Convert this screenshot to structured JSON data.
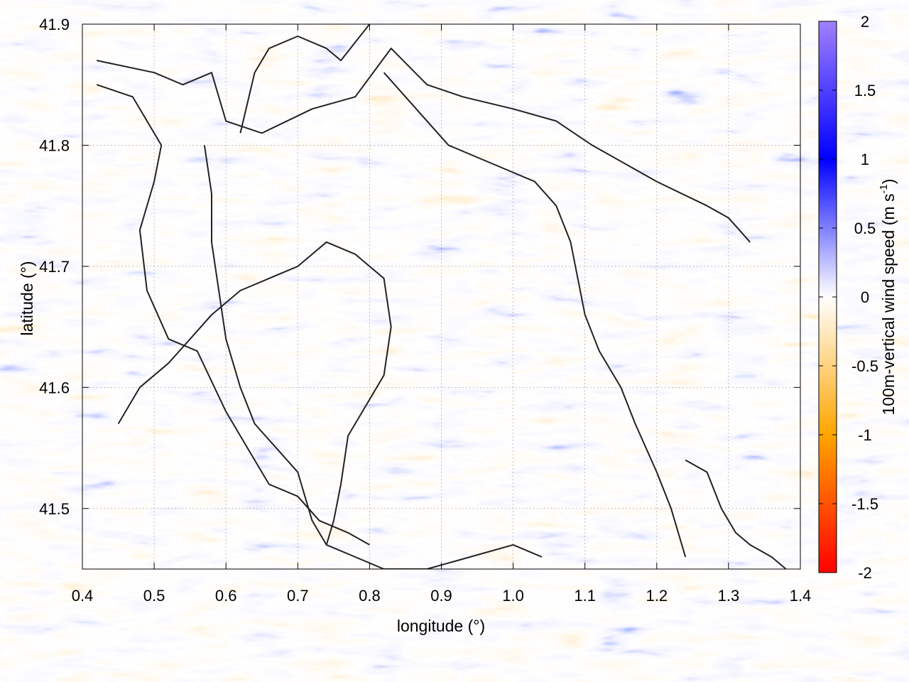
{
  "chart_data": {
    "type": "heatmap",
    "title": "",
    "xlabel": "longitude (°)",
    "ylabel": "latitude (°)",
    "xlim": [
      0.4,
      1.4
    ],
    "ylim": [
      41.45,
      41.9
    ],
    "x_ticks": [
      0.4,
      0.5,
      0.6,
      0.7,
      0.8,
      0.9,
      1.0,
      1.1,
      1.2,
      1.3,
      1.4
    ],
    "x_tick_labels": [
      "0.4",
      "0.5",
      "0.6",
      "0.7",
      "0.8",
      "0.9",
      "1.0",
      "1.1",
      "1.2",
      "1.3",
      "1.4"
    ],
    "y_ticks": [
      41.5,
      41.6,
      41.7,
      41.8,
      41.9
    ],
    "y_tick_labels": [
      "41.5",
      "41.6",
      "41.7",
      "41.8",
      "41.9"
    ],
    "grid": true,
    "colorbar": {
      "label_main": "100m-vertical wind speed (m s",
      "label_sup": "-1",
      "label_end": ")",
      "range": [
        -2,
        2
      ],
      "ticks": [
        2,
        1.5,
        1,
        0.5,
        0,
        -0.5,
        -1,
        -1.5,
        -2
      ],
      "tick_labels": [
        "2",
        "1.5",
        "1",
        "0.5",
        "0",
        "-0.5",
        "-1",
        "-1.5",
        "-2"
      ],
      "colors": [
        {
          "value": -2.0,
          "color": "#ff0000"
        },
        {
          "value": -1.0,
          "color": "#ffa500"
        },
        {
          "value": 0.0,
          "color": "#ffffff"
        },
        {
          "value": 1.0,
          "color": "#0000ff"
        },
        {
          "value": 2.0,
          "color": "#a080ff"
        }
      ]
    },
    "contours": [
      {
        "points": [
          [
            0.42,
            41.87
          ],
          [
            0.5,
            41.86
          ],
          [
            0.54,
            41.85
          ],
          [
            0.58,
            41.86
          ],
          [
            0.6,
            41.82
          ],
          [
            0.65,
            41.81
          ],
          [
            0.72,
            41.83
          ],
          [
            0.78,
            41.84
          ],
          [
            0.83,
            41.88
          ],
          [
            0.88,
            41.85
          ],
          [
            0.93,
            41.84
          ],
          [
            1.0,
            41.83
          ],
          [
            1.06,
            41.82
          ],
          [
            1.11,
            41.8
          ],
          [
            1.2,
            41.77
          ],
          [
            1.27,
            41.75
          ],
          [
            1.3,
            41.74
          ],
          [
            1.33,
            41.72
          ]
        ]
      },
      {
        "points": [
          [
            0.42,
            41.85
          ],
          [
            0.47,
            41.84
          ],
          [
            0.51,
            41.8
          ],
          [
            0.5,
            41.77
          ],
          [
            0.48,
            41.73
          ],
          [
            0.49,
            41.68
          ],
          [
            0.52,
            41.64
          ],
          [
            0.56,
            41.63
          ],
          [
            0.6,
            41.58
          ],
          [
            0.63,
            41.55
          ],
          [
            0.66,
            41.52
          ],
          [
            0.7,
            41.51
          ],
          [
            0.73,
            41.49
          ],
          [
            0.77,
            41.48
          ],
          [
            0.8,
            41.47
          ]
        ]
      },
      {
        "points": [
          [
            0.57,
            41.8
          ],
          [
            0.58,
            41.76
          ],
          [
            0.58,
            41.72
          ],
          [
            0.59,
            41.68
          ],
          [
            0.6,
            41.64
          ],
          [
            0.62,
            41.6
          ],
          [
            0.64,
            41.57
          ],
          [
            0.67,
            41.55
          ],
          [
            0.7,
            41.53
          ],
          [
            0.72,
            41.49
          ],
          [
            0.74,
            41.47
          ],
          [
            0.78,
            41.46
          ],
          [
            0.82,
            41.45
          ],
          [
            0.88,
            41.45
          ],
          [
            0.94,
            41.46
          ],
          [
            1.0,
            41.47
          ],
          [
            1.04,
            41.46
          ]
        ]
      },
      {
        "points": [
          [
            0.82,
            41.86
          ],
          [
            0.85,
            41.84
          ],
          [
            0.88,
            41.82
          ],
          [
            0.91,
            41.8
          ],
          [
            0.95,
            41.79
          ],
          [
            0.99,
            41.78
          ],
          [
            1.03,
            41.77
          ],
          [
            1.06,
            41.75
          ],
          [
            1.08,
            41.72
          ],
          [
            1.09,
            41.69
          ],
          [
            1.1,
            41.66
          ],
          [
            1.12,
            41.63
          ],
          [
            1.15,
            41.6
          ],
          [
            1.17,
            41.57
          ],
          [
            1.2,
            41.53
          ],
          [
            1.22,
            41.5
          ],
          [
            1.23,
            41.48
          ],
          [
            1.24,
            41.46
          ]
        ]
      },
      {
        "points": [
          [
            0.45,
            41.57
          ],
          [
            0.48,
            41.6
          ],
          [
            0.52,
            41.62
          ],
          [
            0.55,
            41.64
          ],
          [
            0.58,
            41.66
          ],
          [
            0.62,
            41.68
          ],
          [
            0.66,
            41.69
          ],
          [
            0.7,
            41.7
          ],
          [
            0.74,
            41.72
          ],
          [
            0.78,
            41.71
          ],
          [
            0.82,
            41.69
          ],
          [
            0.83,
            41.65
          ],
          [
            0.82,
            41.61
          ],
          [
            0.79,
            41.58
          ],
          [
            0.77,
            41.56
          ],
          [
            0.76,
            41.52
          ],
          [
            0.75,
            41.49
          ],
          [
            0.74,
            41.47
          ]
        ]
      },
      {
        "points": [
          [
            0.62,
            41.81
          ],
          [
            0.64,
            41.86
          ],
          [
            0.66,
            41.88
          ],
          [
            0.7,
            41.89
          ],
          [
            0.74,
            41.88
          ],
          [
            0.76,
            41.87
          ],
          [
            0.8,
            41.9
          ]
        ]
      },
      {
        "points": [
          [
            1.24,
            41.54
          ],
          [
            1.27,
            41.53
          ],
          [
            1.29,
            41.5
          ],
          [
            1.31,
            41.48
          ],
          [
            1.33,
            41.47
          ],
          [
            1.36,
            41.46
          ],
          [
            1.38,
            41.45
          ]
        ]
      }
    ]
  }
}
